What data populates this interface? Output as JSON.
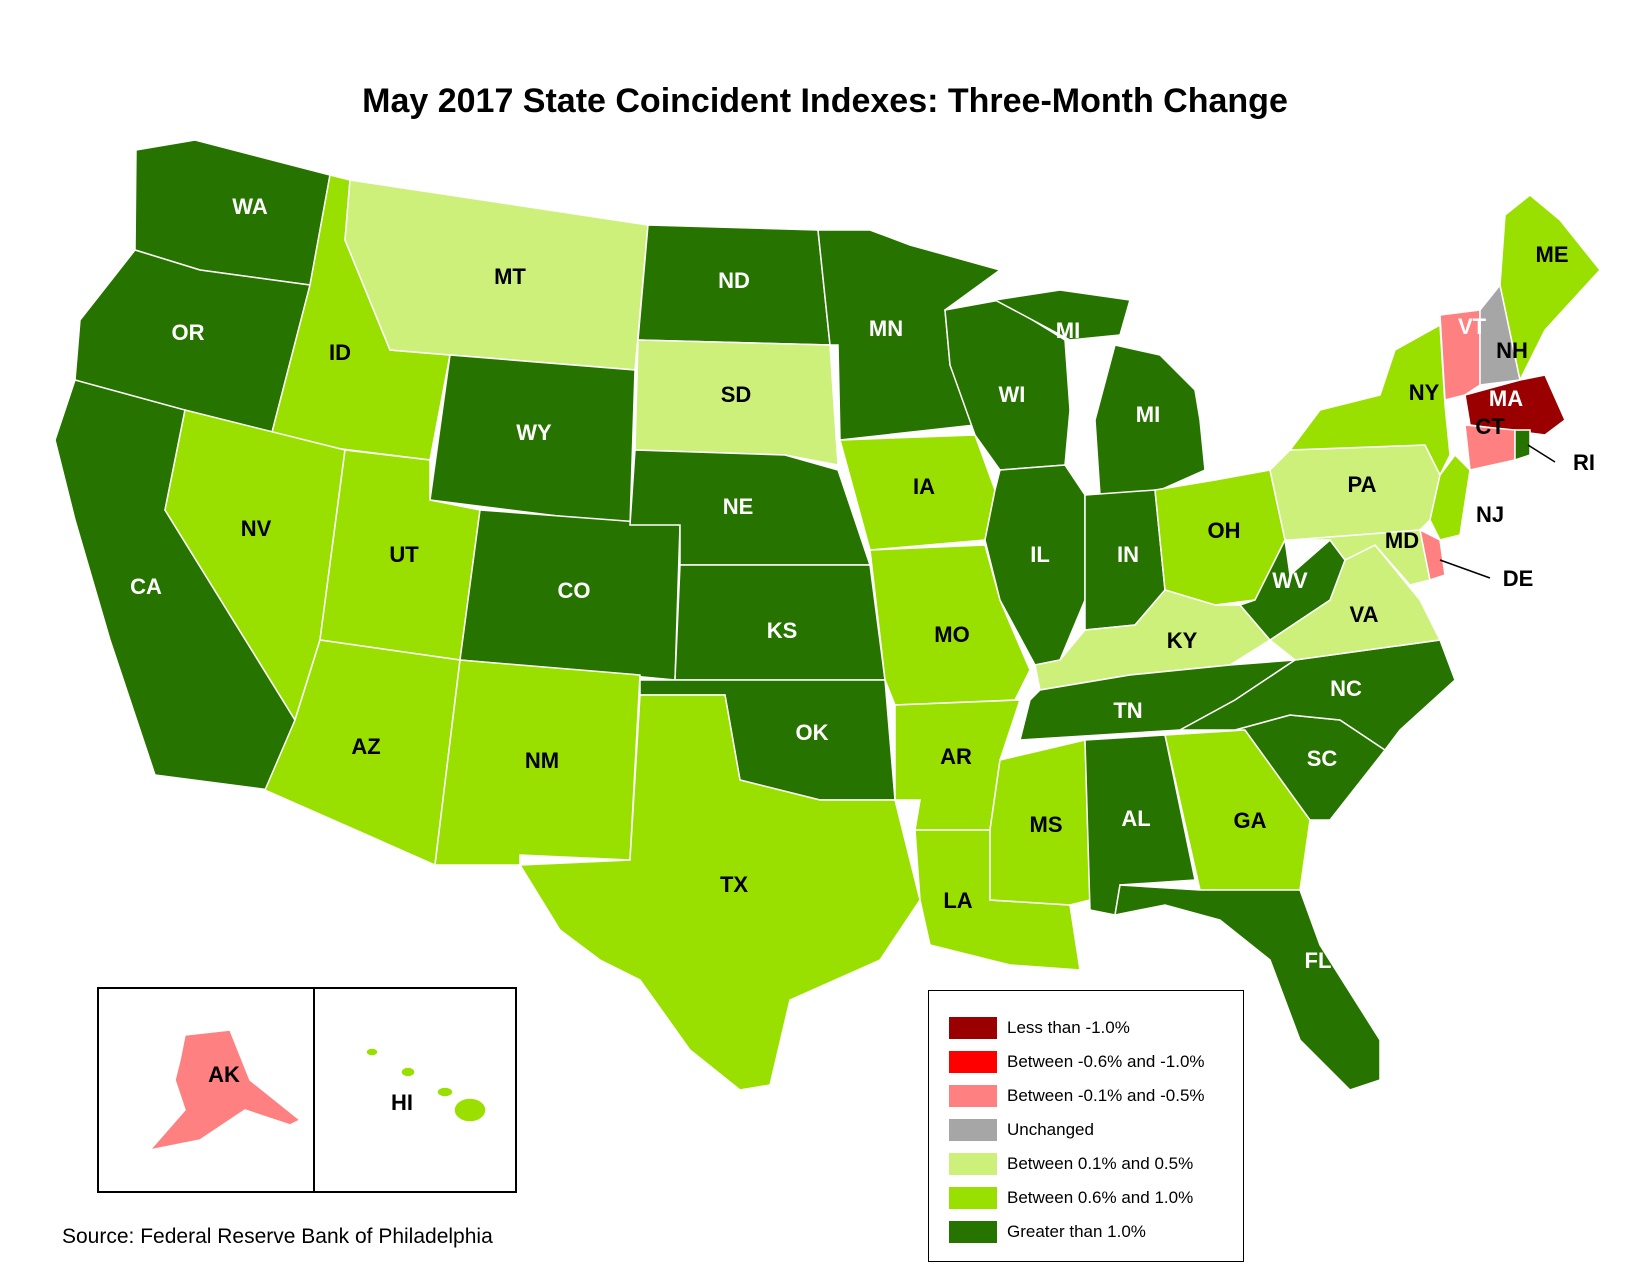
{
  "title": "May 2017 State Coincident Indexes: Three-Month Change",
  "source": "Source: Federal Reserve Bank of Philadelphia",
  "colors": {
    "less_than_neg_1": "#9b0000",
    "neg_06_to_neg_1": "#ff0000",
    "neg_01_to_neg_05": "#ff8080",
    "unchanged": "#a6a6a6",
    "pos_01_to_05": "#ccf07a",
    "pos_06_to_10": "#99e000",
    "greater_than_1": "#267300"
  },
  "legend": [
    {
      "key": "less_than_neg_1",
      "label": "Less than -1.0%"
    },
    {
      "key": "neg_06_to_neg_1",
      "label": "Between -0.6% and -1.0%"
    },
    {
      "key": "neg_01_to_neg_05",
      "label": "Between -0.1% and -0.5%"
    },
    {
      "key": "unchanged",
      "label": "Unchanged"
    },
    {
      "key": "pos_01_to_05",
      "label": "Between 0.1% and 0.5%"
    },
    {
      "key": "pos_06_to_10",
      "label": "Between 0.6% and 1.0%"
    },
    {
      "key": "greater_than_1",
      "label": "Greater than 1.0%"
    }
  ],
  "states": {
    "WA": "greater_than_1",
    "OR": "greater_than_1",
    "CA": "greater_than_1",
    "ID": "pos_06_to_10",
    "NV": "pos_06_to_10",
    "MT": "pos_01_to_05",
    "WY": "greater_than_1",
    "UT": "pos_06_to_10",
    "AZ": "pos_06_to_10",
    "CO": "greater_than_1",
    "NM": "pos_06_to_10",
    "ND": "greater_than_1",
    "SD": "pos_01_to_05",
    "NE": "greater_than_1",
    "KS": "greater_than_1",
    "OK": "greater_than_1",
    "TX": "pos_06_to_10",
    "MN": "greater_than_1",
    "IA": "pos_06_to_10",
    "MO": "pos_06_to_10",
    "AR": "pos_06_to_10",
    "LA": "pos_06_to_10",
    "WI": "greater_than_1",
    "IL": "greater_than_1",
    "MI": "greater_than_1",
    "IN": "greater_than_1",
    "OH": "pos_06_to_10",
    "KY": "pos_01_to_05",
    "TN": "greater_than_1",
    "MS": "pos_06_to_10",
    "AL": "greater_than_1",
    "GA": "pos_06_to_10",
    "FL": "greater_than_1",
    "SC": "greater_than_1",
    "NC": "greater_than_1",
    "VA": "pos_01_to_05",
    "WV": "greater_than_1",
    "PA": "pos_01_to_05",
    "NY": "pos_06_to_10",
    "NJ": "pos_06_to_10",
    "DE": "neg_01_to_neg_05",
    "MD": "pos_01_to_05",
    "CT": "neg_01_to_neg_05",
    "RI": "greater_than_1",
    "MA": "less_than_neg_1",
    "VT": "neg_01_to_neg_05",
    "NH": "unchanged",
    "ME": "pos_06_to_10",
    "AK": "neg_01_to_neg_05",
    "HI": "pos_06_to_10"
  },
  "labels": {
    "WA": "WA",
    "OR": "OR",
    "CA": "CA",
    "ID": "ID",
    "NV": "NV",
    "MT": "MT",
    "WY": "WY",
    "UT": "UT",
    "AZ": "AZ",
    "CO": "CO",
    "NM": "NM",
    "ND": "ND",
    "SD": "SD",
    "NE": "NE",
    "KS": "KS",
    "OK": "OK",
    "TX": "TX",
    "MN": "MN",
    "IA": "IA",
    "MO": "MO",
    "AR": "AR",
    "LA": "LA",
    "WI": "WI",
    "IL": "IL",
    "MI": "MI",
    "IN": "IN",
    "OH": "OH",
    "KY": "KY",
    "TN": "TN",
    "MS": "MS",
    "AL": "AL",
    "GA": "GA",
    "FL": "FL",
    "SC": "SC",
    "NC": "NC",
    "VA": "VA",
    "WV": "WV",
    "PA": "PA",
    "NY": "NY",
    "NJ": "NJ",
    "DE": "DE",
    "MD": "MD",
    "CT": "CT",
    "RI": "RI",
    "MA": "MA",
    "VT": "VT",
    "NH": "NH",
    "ME": "ME",
    "AK": "AK",
    "HI": "HI"
  }
}
